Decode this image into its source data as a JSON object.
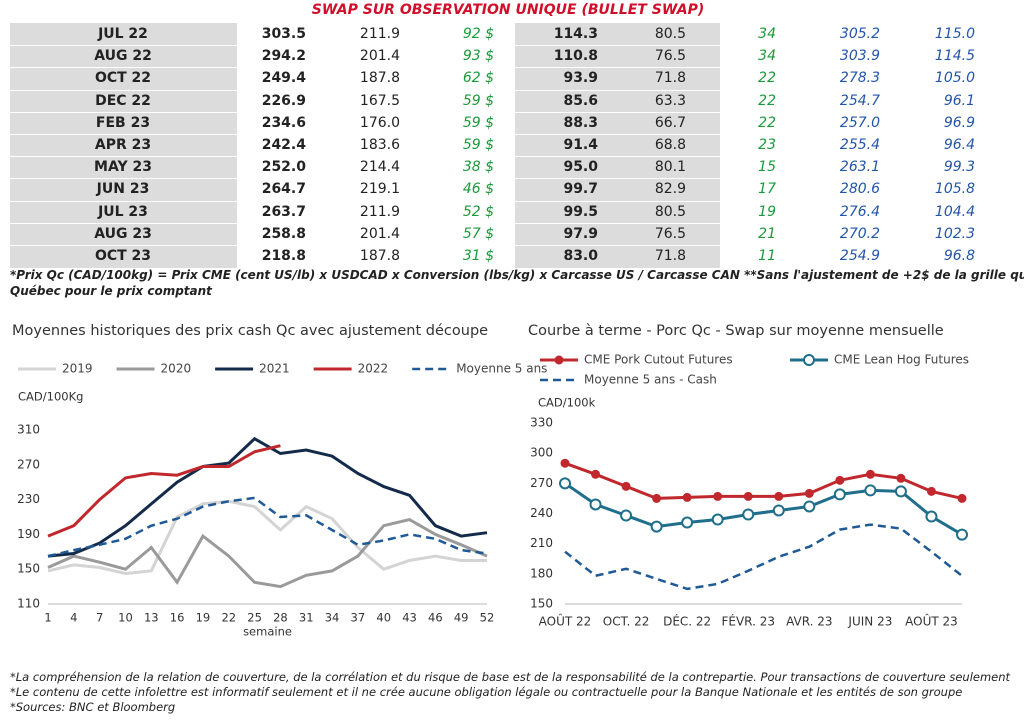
{
  "title": "SWAP SUR OBSERVATION UNIQUE (BULLET SWAP)",
  "table": {
    "rows": [
      [
        "JUL 22",
        "303.5",
        "211.9",
        "92 $",
        "114.3",
        "80.5",
        "34",
        "305.2",
        "115.0"
      ],
      [
        "AUG 22",
        "294.2",
        "201.4",
        "93 $",
        "110.8",
        "76.5",
        "34",
        "303.9",
        "114.5"
      ],
      [
        "OCT 22",
        "249.4",
        "187.8",
        "62 $",
        "93.9",
        "71.8",
        "22",
        "278.3",
        "105.0"
      ],
      [
        "DEC 22",
        "226.9",
        "167.5",
        "59 $",
        "85.6",
        "63.3",
        "22",
        "254.7",
        "96.1"
      ],
      [
        "FEB 23",
        "234.6",
        "176.0",
        "59 $",
        "88.3",
        "66.7",
        "22",
        "257.0",
        "96.9"
      ],
      [
        "APR 23",
        "242.4",
        "183.6",
        "59 $",
        "91.4",
        "68.8",
        "23",
        "255.4",
        "96.4"
      ],
      [
        "MAY 23",
        "252.0",
        "214.4",
        "38 $",
        "95.0",
        "80.1",
        "15",
        "263.1",
        "99.3"
      ],
      [
        "JUN 23",
        "264.7",
        "219.1",
        "46 $",
        "99.7",
        "82.9",
        "17",
        "280.6",
        "105.8"
      ],
      [
        "JUL 23",
        "263.7",
        "211.9",
        "52 $",
        "99.5",
        "80.5",
        "19",
        "276.4",
        "104.4"
      ],
      [
        "AUG 23",
        "258.8",
        "201.4",
        "57 $",
        "97.9",
        "76.5",
        "21",
        "270.2",
        "102.3"
      ],
      [
        "OCT 23",
        "218.8",
        "187.8",
        "31 $",
        "83.0",
        "71.8",
        "11",
        "254.9",
        "96.8"
      ]
    ]
  },
  "footnote": [
    "*Prix Qc (CAD/100kg) = Prix CME (cent US/lb) x USDCAD x Conversion (lbs/kg) x Carcasse US / Carcasse CAN **Sans l'ajustement de +2$ de la grille qualité",
    "Québec pour le prix comptant"
  ],
  "chart_data": [
    {
      "type": "line",
      "title": "Moyennes historiques des prix cash Qc avec ajustement découpe",
      "y_label": "CAD/100Kg",
      "x_label": "semaine",
      "legend": "top",
      "x": [
        1,
        4,
        7,
        10,
        13,
        16,
        19,
        22,
        25,
        28,
        31,
        34,
        37,
        40,
        43,
        46,
        49,
        52
      ],
      "xlim": [
        1,
        52
      ],
      "xticks": [
        1,
        4,
        7,
        10,
        13,
        16,
        19,
        22,
        25,
        28,
        31,
        34,
        37,
        40,
        43,
        46,
        49,
        52
      ],
      "ylim": [
        110,
        310
      ],
      "yticks": [
        110,
        150,
        190,
        230,
        270,
        310
      ],
      "series": [
        {
          "name": "2019",
          "color": "#d4d4d4",
          "style": "solid",
          "values": [
            148,
            155,
            152,
            145,
            148,
            210,
            225,
            228,
            222,
            195,
            222,
            208,
            175,
            150,
            160,
            165,
            160,
            160
          ]
        },
        {
          "name": "2020",
          "color": "#9a9a9a",
          "style": "solid",
          "values": [
            152,
            165,
            158,
            150,
            175,
            135,
            188,
            165,
            135,
            130,
            143,
            148,
            165,
            200,
            207,
            190,
            178,
            165
          ]
        },
        {
          "name": "2021",
          "color": "#142a4a",
          "style": "solid",
          "values": [
            165,
            168,
            180,
            200,
            225,
            250,
            268,
            272,
            300,
            283,
            287,
            280,
            260,
            245,
            235,
            200,
            188,
            192
          ]
        },
        {
          "name": "2022",
          "color": "#c0282d",
          "style": "solid",
          "values": [
            188,
            200,
            230,
            255,
            260,
            258,
            268,
            268,
            285,
            292,
            null,
            null,
            null,
            null,
            null,
            null,
            null,
            null
          ]
        },
        {
          "name": "Moyenne 5 ans",
          "color": "#1f5a96",
          "style": "dashed",
          "values": [
            165,
            172,
            178,
            185,
            200,
            208,
            222,
            228,
            232,
            210,
            212,
            195,
            178,
            183,
            190,
            185,
            172,
            168
          ]
        }
      ]
    },
    {
      "type": "line",
      "title": "Courbe à terme - Porc Qc - Swap sur moyenne mensuelle",
      "y_label": "CAD/100k",
      "legend": "top",
      "categories": [
        "AOÛT 22",
        null,
        "OCT. 22",
        null,
        "DÉC. 22",
        null,
        "FÉVR. 23",
        null,
        "AVR. 23",
        null,
        "JUIN 23",
        null,
        "AOÛT 23",
        null
      ],
      "ylim": [
        150,
        330
      ],
      "yticks": [
        150,
        180,
        210,
        240,
        270,
        300,
        330
      ],
      "series": [
        {
          "name": "CME Pork Cutout Futures",
          "color": "#c0282d",
          "style": "solid",
          "marker": "dot",
          "values": [
            290,
            279,
            267,
            255,
            256,
            257,
            257,
            257,
            260,
            273,
            279,
            275,
            262,
            255
          ]
        },
        {
          "name": "CME Lean Hog Futures",
          "color": "#1f6e8c",
          "style": "solid",
          "marker": "circle",
          "values": [
            270,
            249,
            238,
            227,
            231,
            234,
            239,
            243,
            247,
            259,
            263,
            262,
            237,
            219
          ]
        },
        {
          "name": "Moyenne 5 ans - Cash",
          "color": "#1f5a96",
          "style": "dashed",
          "values": [
            202,
            178,
            185,
            175,
            165,
            170,
            183,
            197,
            207,
            224,
            229,
            225,
            202,
            178
          ]
        }
      ]
    }
  ],
  "notes": [
    "*La compréhension de la relation de couverture, de la corrélation et du risque de base est de la responsabilité de la contrepartie. Pour transactions de couverture seulement",
    "*Le contenu de cette infolettre est informatif seulement et il ne crée aucune obligation légale ou contractuelle pour la Banque Nationale et les entités de son groupe",
    "*Sources: BNC et Bloomberg"
  ]
}
